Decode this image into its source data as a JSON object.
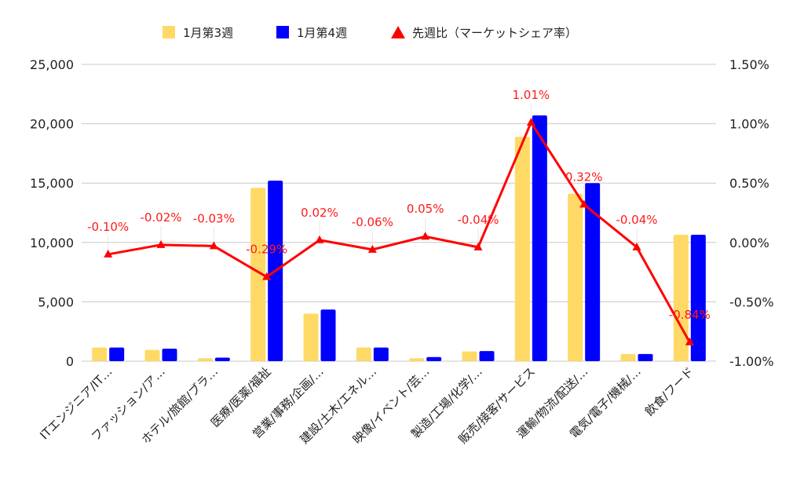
{
  "chart_data": {
    "type": "bar",
    "categories": [
      "ITエンジニア/IT…",
      "ファッション/ア…",
      "ホテル/旅館/ブラ…",
      "医療/医薬/福祉",
      "営業/事務/企画/…",
      "建設/土木/エネル…",
      "映像/イベント/芸…",
      "製造/工場/化学/…",
      "販売/接客/サービス",
      "運輸/物流/配送/…",
      "電気/電子/機械/…",
      "飲食/フード"
    ],
    "series": [
      {
        "name": "1月第3週",
        "type": "bar",
        "axis": "left",
        "color": "#ffd966",
        "values": [
          1150,
          950,
          250,
          14600,
          4000,
          1150,
          250,
          820,
          18900,
          14100,
          600,
          10650
        ]
      },
      {
        "name": "1月第4週",
        "type": "bar",
        "axis": "left",
        "color": "#0000ff",
        "values": [
          1150,
          1050,
          300,
          15200,
          4350,
          1150,
          350,
          850,
          20700,
          15000,
          600,
          10650
        ]
      },
      {
        "name": "先週比（マーケットシェア率）",
        "type": "line",
        "axis": "right",
        "color": "#ff0000",
        "marker": "triangle",
        "values": [
          -0.1,
          -0.02,
          -0.03,
          -0.29,
          0.02,
          -0.06,
          0.05,
          -0.04,
          1.01,
          0.32,
          -0.04,
          -0.84
        ],
        "labels": [
          "-0.10%",
          "-0.02%",
          "-0.03%",
          "-0.29%",
          "0.02%",
          "-0.06%",
          "0.05%",
          "-0.04%",
          "1.01%",
          "0.32%",
          "-0.04%",
          "-0.84%"
        ]
      }
    ],
    "left_axis": {
      "ylim": [
        0,
        25000
      ],
      "ticks": [
        "0",
        "5,000",
        "10,000",
        "15,000",
        "20,000",
        "25,000"
      ]
    },
    "right_axis": {
      "ylim": [
        -1.0,
        1.5
      ],
      "ticks": [
        "-1.00%",
        "-0.50%",
        "0.00%",
        "0.50%",
        "1.00%",
        "1.50%"
      ]
    },
    "legend": "top-center",
    "grid": true
  }
}
